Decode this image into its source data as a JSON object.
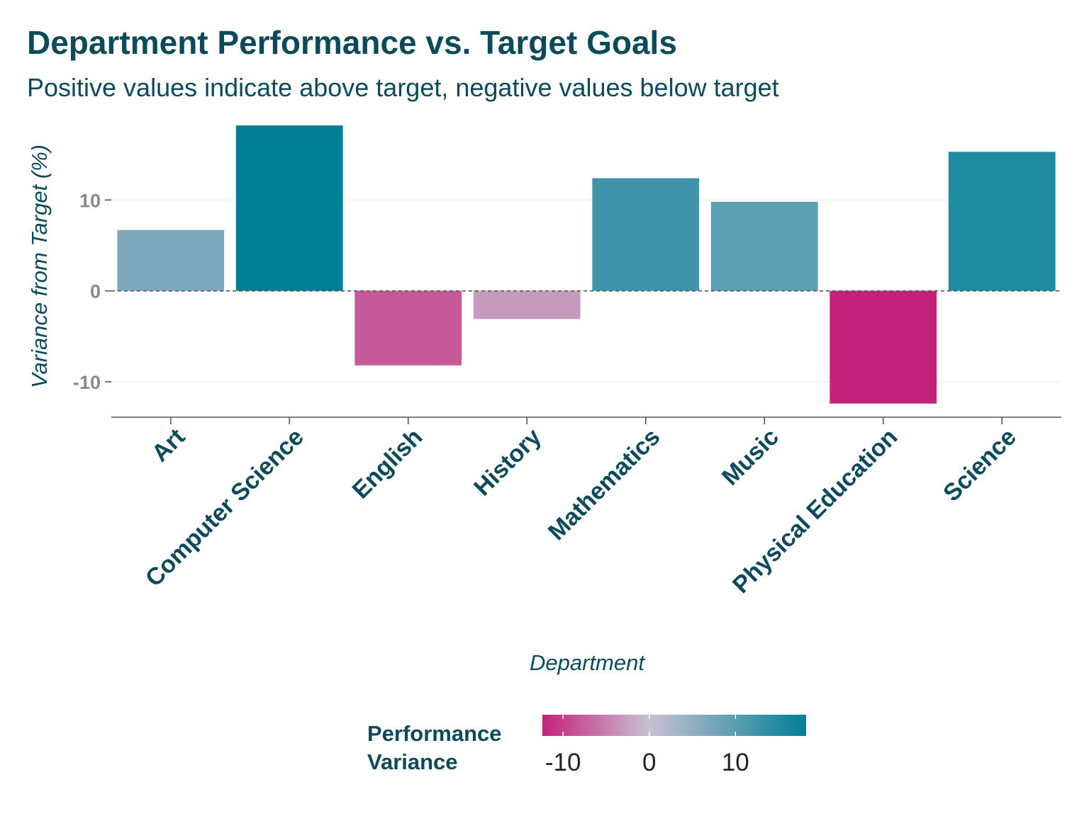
{
  "chart_data": {
    "type": "bar",
    "title": "Department Performance vs. Target Goals",
    "subtitle": "Positive values indicate above target, negative values below target",
    "xlabel": "Department",
    "ylabel": "Variance from Target (%)",
    "categories": [
      "Art",
      "Computer Science",
      "English",
      "History",
      "Mathematics",
      "Music",
      "Physical Education",
      "Science"
    ],
    "values": [
      6.7,
      18.2,
      -8.2,
      -3.1,
      12.4,
      9.8,
      -12.4,
      15.3
    ],
    "ylim": [
      -13.9,
      19.3
    ],
    "yticks": [
      -10,
      0,
      10
    ],
    "ytick_labels": [
      "-10",
      "0",
      "10"
    ],
    "reference_line": 0,
    "grid": true,
    "colors": {
      "low": "#c4217a",
      "mid": "#c7c2d3",
      "high": "#007f95",
      "text": "#0b4a5a"
    },
    "legend": {
      "title": "Performance\nVariance",
      "placement": "bottom",
      "range": [
        -12.4,
        18.2
      ],
      "ticks": [
        -10,
        0,
        10
      ],
      "tick_labels": [
        "-10",
        "0",
        "10"
      ]
    }
  }
}
